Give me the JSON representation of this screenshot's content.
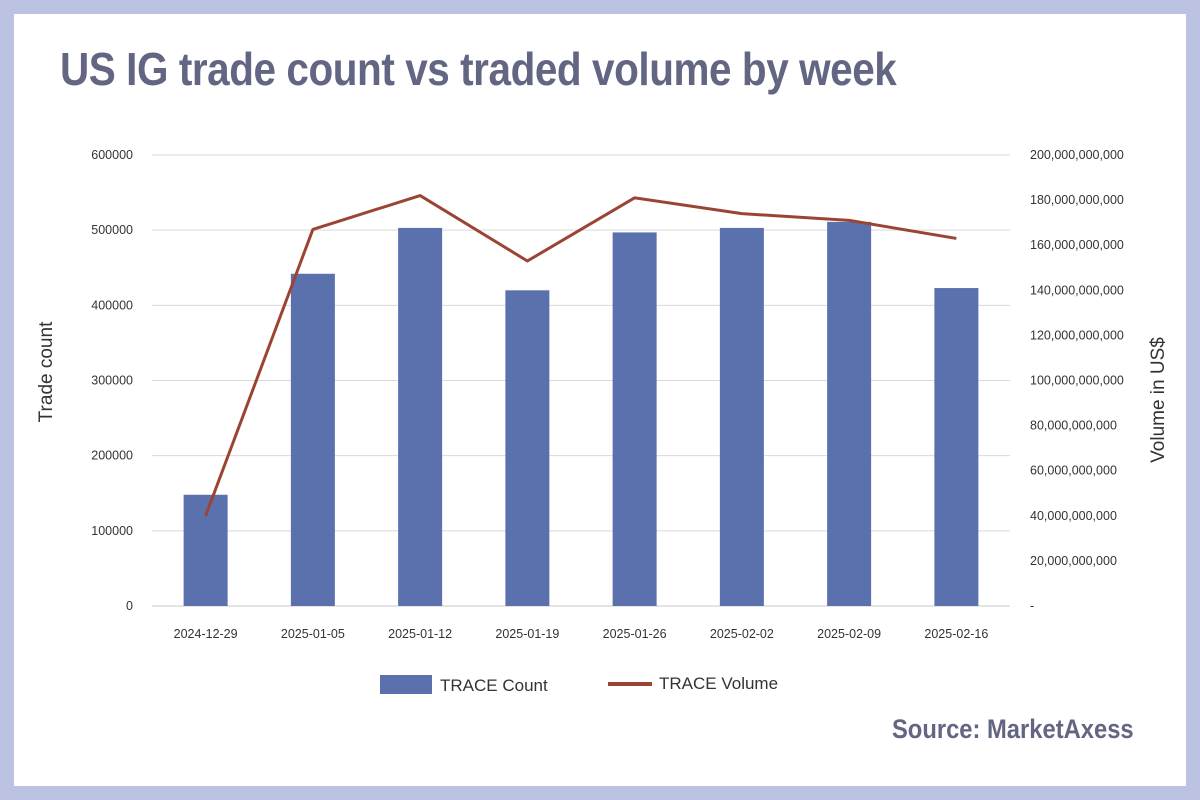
{
  "title": "US IG trade count vs traded volume by week",
  "source": "Source: MarketAxess",
  "colors": {
    "background": "#bcc2e2",
    "bar": "#5b71ae",
    "line": "#9c4434",
    "title": "#636682",
    "grid": "#d9d9d9"
  },
  "chart_data": {
    "type": "bar",
    "categories": [
      "2024-12-29",
      "2025-01-05",
      "2025-01-12",
      "2025-01-19",
      "2025-01-26",
      "2025-02-02",
      "2025-02-09",
      "2025-02-16"
    ],
    "series": [
      {
        "name": "TRACE Count",
        "type": "bar",
        "axis": "left",
        "values": [
          148000,
          442000,
          503000,
          420000,
          497000,
          503000,
          511000,
          423000
        ]
      },
      {
        "name": "TRACE Volume",
        "type": "line",
        "axis": "right",
        "values": [
          40000000000,
          167000000000,
          182000000000,
          153000000000,
          181000000000,
          174000000000,
          171000000000,
          163000000000
        ]
      }
    ],
    "ylabel": "Trade count",
    "y2label": "Volume in US$",
    "ylim": [
      0,
      600000
    ],
    "y2lim": [
      0,
      200000000000
    ],
    "yticks": [
      "0",
      "100000",
      "200000",
      "300000",
      "400000",
      "500000",
      "600000"
    ],
    "y2ticks": [
      "-",
      "20,000,000,000",
      "40,000,000,000",
      "60,000,000,000",
      "80,000,000,000",
      "100,000,000,000",
      "120,000,000,000",
      "140,000,000,000",
      "160,000,000,000",
      "180,000,000,000",
      "200,000,000,000"
    ],
    "grid": true,
    "legend_position": "bottom"
  }
}
